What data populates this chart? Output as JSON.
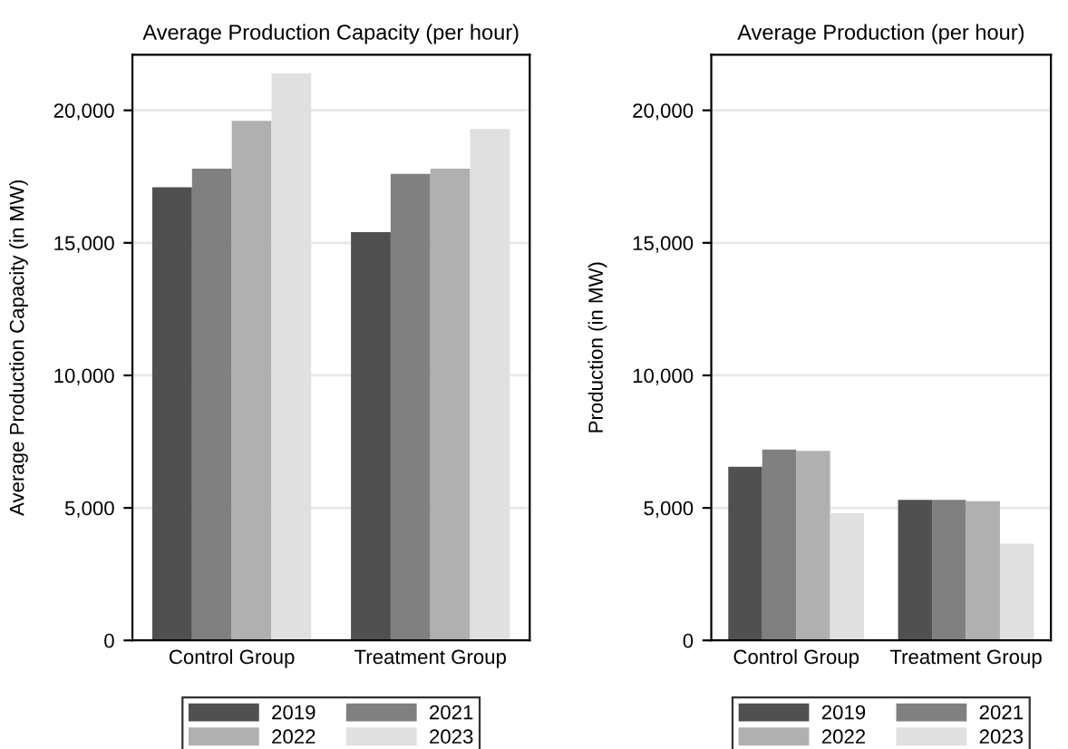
{
  "chart_data": [
    {
      "type": "bar",
      "title": "Average Production Capacity (per hour)",
      "ylabel": "Average Production Capacity (in MW)",
      "categories": [
        "Control Group",
        "Treatment Group"
      ],
      "series": [
        {
          "name": "2019",
          "color": "#505050",
          "values": [
            17100,
            15400
          ]
        },
        {
          "name": "2021",
          "color": "#808080",
          "values": [
            17800,
            17600
          ]
        },
        {
          "name": "2022",
          "color": "#b0b0b0",
          "values": [
            19600,
            17800
          ]
        },
        {
          "name": "2023",
          "color": "#e0e0e0",
          "values": [
            21400,
            19300
          ]
        }
      ],
      "ylim": [
        0,
        22100
      ],
      "yticks": [
        0,
        {
          "value": 5000,
          "label": "5,000"
        },
        {
          "value": 10000,
          "label": "10,000"
        },
        {
          "value": 15000,
          "label": "15,000"
        },
        {
          "value": 20000,
          "label": "20,000"
        }
      ],
      "grid": "y",
      "legend": "bottom"
    },
    {
      "type": "bar",
      "title": "Average Production (per hour)",
      "ylabel": "Production (in MW)",
      "categories": [
        "Control Group",
        "Treatment Group"
      ],
      "series": [
        {
          "name": "2019",
          "color": "#505050",
          "values": [
            6550,
            5300
          ]
        },
        {
          "name": "2021",
          "color": "#808080",
          "values": [
            7200,
            5300
          ]
        },
        {
          "name": "2022",
          "color": "#b0b0b0",
          "values": [
            7150,
            5250
          ]
        },
        {
          "name": "2023",
          "color": "#e0e0e0",
          "values": [
            4800,
            3650
          ]
        }
      ],
      "ylim": [
        0,
        22100
      ],
      "yticks": [
        0,
        {
          "value": 5000,
          "label": "5,000"
        },
        {
          "value": 10000,
          "label": "10,000"
        },
        {
          "value": 15000,
          "label": "15,000"
        },
        {
          "value": 20000,
          "label": "20,000"
        }
      ],
      "grid": "y",
      "legend": "bottom"
    }
  ]
}
